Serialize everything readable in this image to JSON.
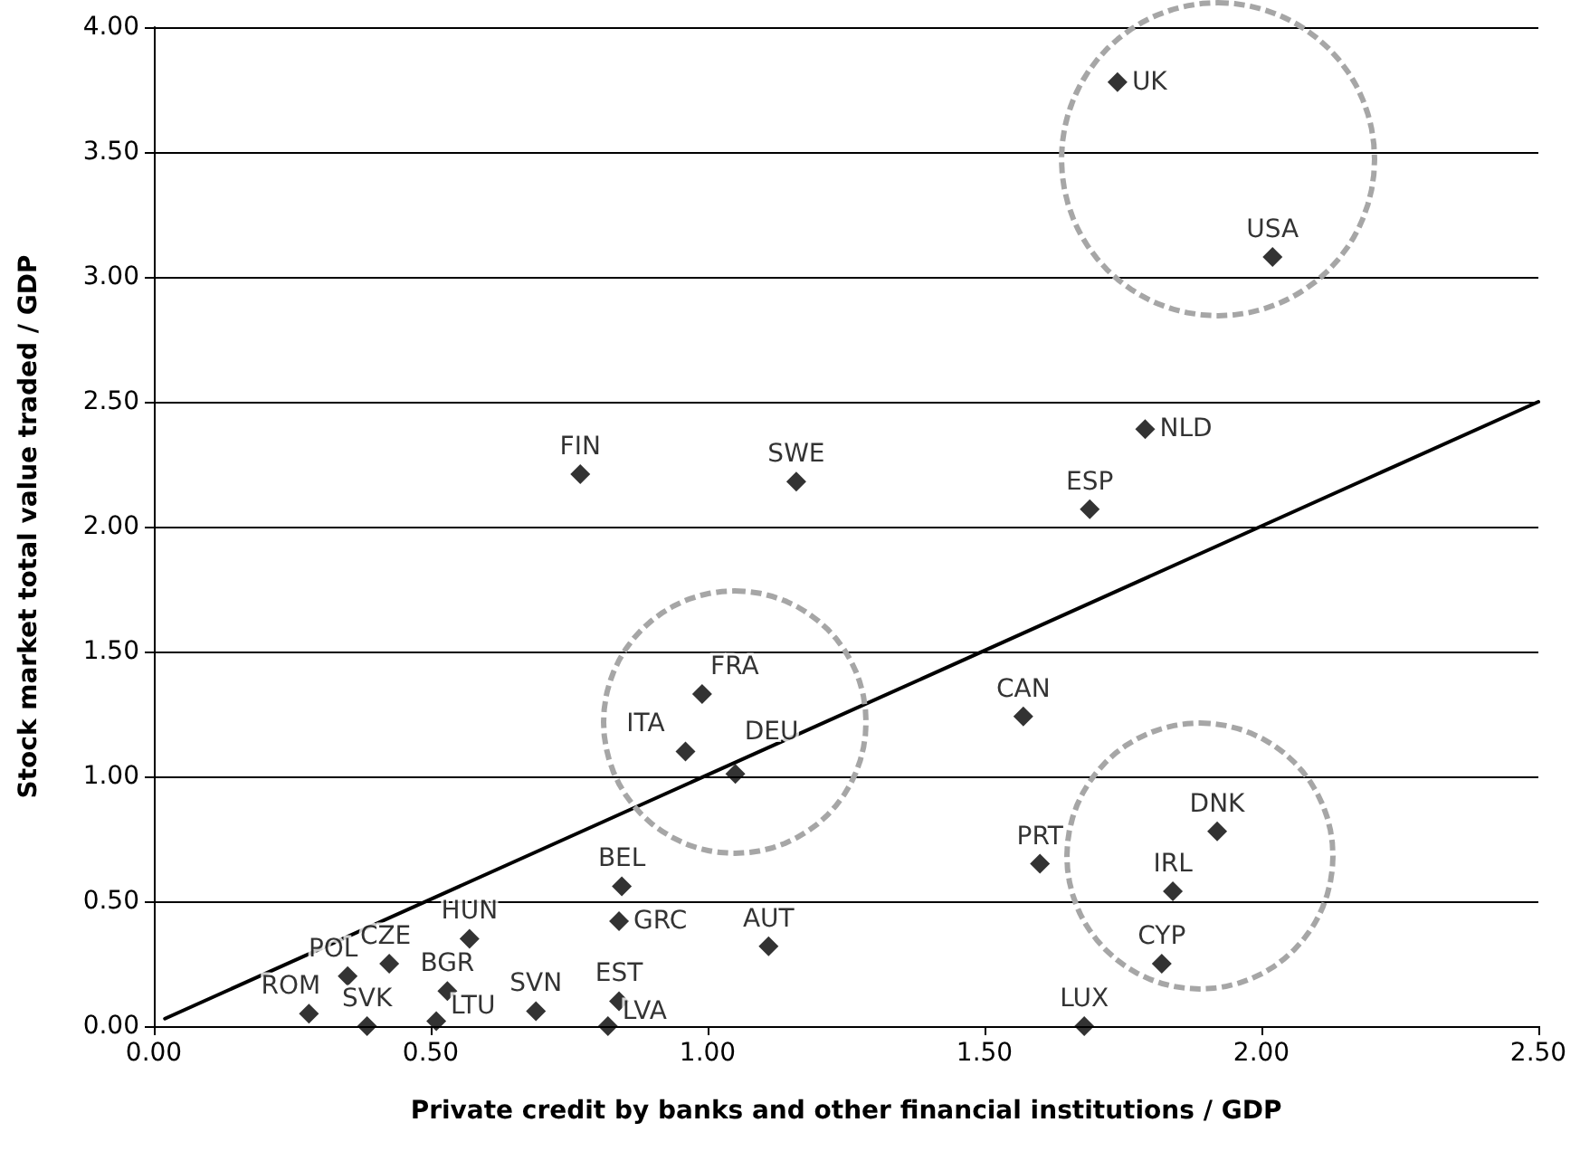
{
  "chart_data": {
    "type": "scatter",
    "xlabel": "Private credit by banks and other financial institutions / GDP",
    "ylabel": "Stock market total value traded / GDP",
    "series": [
      {
        "type": "scatter",
        "color": "#000000",
        "marker": "diamond",
        "x": [
          0.28,
          0.385,
          0.35,
          0.425,
          0.53,
          0.51,
          0.57,
          0.69,
          0.82,
          0.84,
          0.84,
          0.845,
          1.11,
          0.96,
          0.99,
          1.05,
          1.57,
          1.6,
          1.92,
          1.84,
          1.82,
          1.68,
          1.69,
          1.74,
          2.02,
          1.79,
          0.77,
          1.16
        ],
        "values": [
          0.05,
          0.0,
          0.2,
          0.25,
          0.14,
          0.02,
          0.35,
          0.06,
          0.0,
          0.1,
          0.42,
          0.56,
          0.32,
          1.1,
          1.33,
          1.01,
          1.24,
          0.65,
          0.78,
          0.54,
          0.25,
          0.0,
          2.07,
          3.78,
          3.08,
          2.39,
          2.21,
          2.18
        ]
      },
      {
        "type": "line",
        "color": "#000000",
        "marker": "none",
        "line_style": "solid",
        "x": [
          0.02,
          2.5
        ],
        "values": [
          0.03,
          2.5
        ]
      }
    ],
    "annotations": [
      {
        "text": "ROM",
        "x": 0.28,
        "y": 0.05
      },
      {
        "text": "SVK",
        "x": 0.385,
        "y": 0.0
      },
      {
        "text": "POL",
        "x": 0.35,
        "y": 0.2
      },
      {
        "text": "CZE",
        "x": 0.425,
        "y": 0.25
      },
      {
        "text": "BGR",
        "x": 0.53,
        "y": 0.14
      },
      {
        "text": "LTU",
        "x": 0.51,
        "y": 0.02
      },
      {
        "text": "HUN",
        "x": 0.57,
        "y": 0.35
      },
      {
        "text": "SVN",
        "x": 0.69,
        "y": 0.06
      },
      {
        "text": "LVA",
        "x": 0.82,
        "y": 0.0
      },
      {
        "text": "EST",
        "x": 0.84,
        "y": 0.1
      },
      {
        "text": "GRC",
        "x": 0.84,
        "y": 0.42
      },
      {
        "text": "BEL",
        "x": 0.845,
        "y": 0.56
      },
      {
        "text": "AUT",
        "x": 1.11,
        "y": 0.32
      },
      {
        "text": "ITA",
        "x": 0.96,
        "y": 1.1
      },
      {
        "text": "FRA",
        "x": 0.99,
        "y": 1.33
      },
      {
        "text": "DEU",
        "x": 1.05,
        "y": 1.01
      },
      {
        "text": "CAN",
        "x": 1.57,
        "y": 1.24
      },
      {
        "text": "PRT",
        "x": 1.6,
        "y": 0.65
      },
      {
        "text": "DNK",
        "x": 1.92,
        "y": 0.78
      },
      {
        "text": "IRL",
        "x": 1.84,
        "y": 0.54
      },
      {
        "text": "CYP",
        "x": 1.82,
        "y": 0.25
      },
      {
        "text": "LUX",
        "x": 1.68,
        "y": 0.0
      },
      {
        "text": "ESP",
        "x": 1.69,
        "y": 2.07
      },
      {
        "text": "UK",
        "x": 1.74,
        "y": 3.78
      },
      {
        "text": "USA",
        "x": 2.02,
        "y": 3.08
      },
      {
        "text": "NLD",
        "x": 1.79,
        "y": 2.39
      },
      {
        "text": "FIN",
        "x": 0.77,
        "y": 2.21
      },
      {
        "text": "SWE",
        "x": 1.16,
        "y": 2.18
      }
    ],
    "xlim": [
      0,
      2.5
    ],
    "xticks": [
      {
        "value": 0,
        "label": "0.00"
      },
      {
        "value": 0.5,
        "label": "0.50"
      },
      {
        "value": 1,
        "label": "1.00"
      },
      {
        "value": 1.5,
        "label": "1.50"
      },
      {
        "value": 2,
        "label": "2.00"
      },
      {
        "value": 2.5,
        "label": "2.50"
      }
    ],
    "ylim": [
      0,
      4
    ],
    "yticks": [
      {
        "value": 0,
        "label": "0.00"
      },
      {
        "value": 0.5,
        "label": "0.50"
      },
      {
        "value": 1,
        "label": "1.00"
      },
      {
        "value": 1.5,
        "label": "1.50"
      },
      {
        "value": 2,
        "label": "2.00"
      },
      {
        "value": 2.5,
        "label": "2.50"
      },
      {
        "value": 3,
        "label": "3.00"
      },
      {
        "value": 3.5,
        "label": "3.50"
      },
      {
        "value": 4,
        "label": "4.00"
      }
    ],
    "grid": "y"
  }
}
